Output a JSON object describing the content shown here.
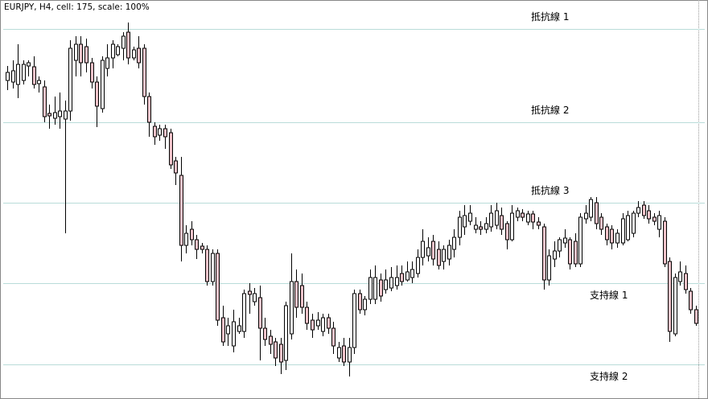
{
  "chart_data": {
    "type": "candlestick",
    "title": "EURJPY, H4, cell: 175, scale: 100%",
    "ylim": [
      0,
      500
    ],
    "up_color": "#ffffff",
    "down_color": "#f2c4cb",
    "line_color": "#b9dcd9",
    "open": [
      400,
      398,
      395,
      400,
      418,
      417,
      396,
      392,
      359,
      353,
      355,
      352,
      362,
      425,
      445,
      442,
      422,
      398,
      365,
      415,
      428,
      432,
      440,
      460,
      428,
      440,
      440,
      380,
      343,
      332,
      340,
      335,
      300,
      282,
      195,
      215,
      202,
      194,
      190,
      150,
      185,
      105,
      85,
      70,
      88,
      88,
      138,
      125,
      130,
      92,
      82,
      75,
      72,
      52,
      85,
      150,
      145,
      118,
      102,
      95,
      88,
      105,
      92,
      55,
      70,
      50,
      68,
      135,
      115,
      128,
      128,
      152,
      140,
      142,
      145,
      160,
      152,
      155,
      160,
      180,
      182,
      200,
      190,
      175,
      178,
      190,
      205,
      218,
      225,
      215,
      218,
      215,
      218,
      220,
      232,
      222,
      202,
      230,
      235,
      224,
      234,
      224,
      218,
      152,
      178,
      188,
      198,
      202,
      200,
      172,
      228,
      230,
      248,
      230,
      218,
      215,
      198,
      198,
      202,
      210,
      235,
      245,
      238,
      230,
      215,
      225,
      175,
      85,
      150,
      160,
      138,
      115
    ],
    "high": [
      418,
      425,
      445,
      425,
      425,
      430,
      405,
      400,
      370,
      380,
      385,
      375,
      450,
      455,
      455,
      452,
      428,
      405,
      430,
      445,
      450,
      445,
      460,
      472,
      442,
      455,
      445,
      385,
      348,
      345,
      345,
      340,
      305,
      305,
      220,
      225,
      208,
      198,
      195,
      190,
      190,
      120,
      105,
      115,
      105,
      140,
      148,
      142,
      145,
      105,
      90,
      80,
      80,
      125,
      185,
      165,
      160,
      125,
      110,
      112,
      110,
      110,
      100,
      75,
      80,
      80,
      140,
      140,
      132,
      165,
      170,
      160,
      165,
      168,
      170,
      170,
      175,
      175,
      190,
      215,
      205,
      208,
      200,
      195,
      202,
      215,
      238,
      245,
      245,
      230,
      225,
      230,
      245,
      248,
      242,
      225,
      245,
      242,
      240,
      238,
      238,
      230,
      222,
      190,
      200,
      205,
      215,
      205,
      210,
      235,
      245,
      255,
      255,
      235,
      222,
      220,
      215,
      235,
      238,
      238,
      250,
      250,
      245,
      235,
      238,
      230,
      180,
      160,
      175,
      170,
      142,
      120
    ],
    "low": [
      388,
      390,
      378,
      395,
      405,
      390,
      385,
      348,
      340,
      345,
      340,
      210,
      350,
      405,
      405,
      410,
      390,
      342,
      360,
      405,
      415,
      430,
      425,
      420,
      425,
      415,
      370,
      330,
      320,
      325,
      315,
      290,
      270,
      175,
      185,
      195,
      178,
      185,
      145,
      145,
      95,
      70,
      70,
      62,
      85,
      80,
      110,
      120,
      52,
      70,
      60,
      45,
      35,
      40,
      78,
      105,
      110,
      90,
      80,
      90,
      82,
      85,
      60,
      50,
      45,
      32,
      60,
      110,
      108,
      122,
      122,
      125,
      135,
      138,
      140,
      145,
      150,
      148,
      155,
      170,
      175,
      170,
      165,
      165,
      170,
      180,
      195,
      208,
      220,
      210,
      208,
      210,
      212,
      215,
      208,
      190,
      200,
      225,
      225,
      220,
      215,
      215,
      140,
      145,
      168,
      180,
      192,
      165,
      168,
      168,
      222,
      225,
      215,
      208,
      195,
      190,
      192,
      195,
      200,
      205,
      230,
      228,
      222,
      220,
      205,
      168,
      75,
      82,
      145,
      135,
      110,
      95
    ],
    "close": [
      410,
      412,
      420,
      420,
      422,
      395,
      400,
      355,
      356,
      360,
      362,
      362,
      440,
      445,
      422,
      422,
      398,
      368,
      425,
      428,
      445,
      442,
      455,
      428,
      438,
      422,
      380,
      348,
      330,
      340,
      330,
      295,
      285,
      195,
      210,
      202,
      190,
      190,
      150,
      185,
      102,
      75,
      95,
      100,
      95,
      135,
      134,
      135,
      92,
      78,
      72,
      55,
      50,
      120,
      150,
      118,
      118,
      98,
      90,
      102,
      105,
      92,
      70,
      68,
      50,
      68,
      135,
      115,
      128,
      155,
      155,
      132,
      152,
      155,
      155,
      150,
      162,
      165,
      180,
      200,
      192,
      178,
      170,
      190,
      195,
      205,
      230,
      232,
      235,
      220,
      215,
      222,
      235,
      238,
      215,
      202,
      235,
      238,
      230,
      234,
      224,
      220,
      152,
      182,
      188,
      202,
      204,
      172,
      172,
      230,
      235,
      252,
      222,
      215,
      202,
      198,
      210,
      228,
      232,
      235,
      242,
      232,
      228,
      225,
      232,
      172,
      88,
      155,
      162,
      140,
      115,
      98
    ],
    "levels": [
      {
        "label": "抵抗線 1",
        "value": 464
      },
      {
        "label": "抵抗線 2",
        "value": 348
      },
      {
        "label": "抵抗線 3",
        "value": 248
      },
      {
        "label": "支持線 1",
        "value": 148
      },
      {
        "label": "支持線 2",
        "value": 47
      }
    ]
  }
}
